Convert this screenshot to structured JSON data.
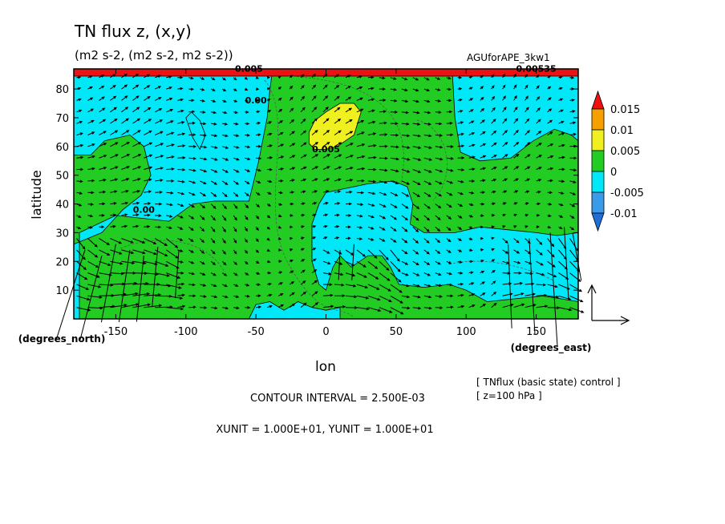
{
  "title": "TN flux z, (x,y)",
  "subtitle": "(m2 s-2, (m2 s-2, m2 s-2))",
  "run_name": "AGUforAPE_3kw1",
  "contour_interval": "CONTOUR INTERVAL = 2.500E-03",
  "units_line": "XUNIT = 1.000E+01, YUNIT = 1.000E+01",
  "legend_note_1": "[ TNflux (basic state) control ]",
  "legend_note_2": "[ z=100 hPa ]",
  "colors": {
    "lt_-0.01": "#1f6fd6",
    "-0.01_-0.005": "#3a9be8",
    "-0.005_0": "#00e8f8",
    "0_0.005": "#22cc22",
    "0.005_0.01": "#f0f020",
    "0.01_0.015": "#f5a000",
    "gt_0.015": "#ee1111"
  },
  "chart_data": {
    "type": "heatmap",
    "subtype": "filled-contour with vector overlay",
    "xlabel": "lon",
    "ylabel": "latitude",
    "xunit_label": "(degrees_east)",
    "yunit_label": "(degrees_north)",
    "xlim": [
      -180,
      180
    ],
    "ylim": [
      0,
      87
    ],
    "xticks": [
      -150,
      -100,
      -50,
      0,
      50,
      100,
      150
    ],
    "xtick_labels": [
      "-150",
      "-100",
      "-50",
      "0",
      "50",
      "100",
      "150"
    ],
    "yticks": [
      10,
      20,
      30,
      40,
      50,
      60,
      70,
      80
    ],
    "ytick_labels": [
      "10",
      "20",
      "30",
      "40",
      "50",
      "60",
      "70",
      "80"
    ],
    "colorbar": {
      "levels": [
        -0.01,
        -0.005,
        0,
        0.005,
        0.01,
        0.015
      ],
      "labels": [
        "-0.01",
        "-0.005",
        "0",
        "0.005",
        "0.01",
        "0.015"
      ]
    },
    "contour_labels": [
      {
        "text": "0.005",
        "lon": -55,
        "lat": 86
      },
      {
        "text": "0.00",
        "lon": -50,
        "lat": 75
      },
      {
        "text": "0.005",
        "lon": 0,
        "lat": 58
      },
      {
        "text": "0.00",
        "lon": -130,
        "lat": 37
      },
      {
        "text": "0.00535",
        "lon": 150,
        "lat": 86
      }
    ],
    "regions": [
      {
        "level": "0_0.005",
        "points": [
          [
            -180,
            0
          ],
          [
            180,
            0
          ],
          [
            180,
            87
          ],
          [
            -180,
            87
          ]
        ]
      },
      {
        "level": "-0.005_0",
        "points": [
          [
            -180,
            87
          ],
          [
            -180,
            57
          ],
          [
            -168,
            57
          ],
          [
            -158,
            62
          ],
          [
            -140,
            64
          ],
          [
            -130,
            60
          ],
          [
            -125,
            50
          ],
          [
            -132,
            43
          ],
          [
            -145,
            38
          ],
          [
            -160,
            30
          ],
          [
            -175,
            27
          ],
          [
            -180,
            26
          ],
          [
            -180,
            0
          ],
          [
            -176,
            0
          ],
          [
            -176,
            30
          ],
          [
            -150,
            36
          ],
          [
            -112,
            34
          ],
          [
            -95,
            40
          ],
          [
            -80,
            41
          ],
          [
            -55,
            41
          ],
          [
            -48,
            55
          ],
          [
            -42,
            70
          ],
          [
            -40,
            80
          ],
          [
            -38,
            87
          ]
        ]
      },
      {
        "level": "-0.005_0",
        "points": [
          [
            -100,
            70
          ],
          [
            -95,
            63
          ],
          [
            -90,
            59
          ],
          [
            -86,
            64
          ],
          [
            -90,
            69
          ],
          [
            -96,
            72
          ]
        ]
      },
      {
        "level": "-0.005_0",
        "points": [
          [
            90,
            87
          ],
          [
            92,
            70
          ],
          [
            96,
            58
          ],
          [
            110,
            55
          ],
          [
            132,
            56
          ],
          [
            148,
            62
          ],
          [
            163,
            66
          ],
          [
            175,
            64
          ],
          [
            180,
            62
          ],
          [
            180,
            87
          ]
        ]
      },
      {
        "level": "-0.005_0",
        "points": [
          [
            -10,
            33
          ],
          [
            -5,
            40
          ],
          [
            0,
            44
          ],
          [
            10,
            45
          ],
          [
            30,
            47
          ],
          [
            48,
            48
          ],
          [
            58,
            46
          ],
          [
            62,
            40
          ],
          [
            60,
            33
          ],
          [
            70,
            30
          ],
          [
            92,
            30
          ],
          [
            110,
            32
          ],
          [
            130,
            31
          ],
          [
            150,
            30
          ],
          [
            165,
            29
          ],
          [
            180,
            30
          ],
          [
            180,
            6
          ],
          [
            155,
            8
          ],
          [
            115,
            6
          ],
          [
            100,
            10
          ],
          [
            88,
            12
          ],
          [
            70,
            11
          ],
          [
            52,
            12
          ],
          [
            46,
            18
          ],
          [
            40,
            22
          ],
          [
            30,
            22
          ],
          [
            18,
            18
          ],
          [
            10,
            22
          ],
          [
            5,
            18
          ],
          [
            0,
            10
          ],
          [
            -5,
            12
          ],
          [
            -10,
            20
          ]
        ]
      },
      {
        "level": "-0.005_0",
        "points": [
          [
            -55,
            0
          ],
          [
            -50,
            5
          ],
          [
            -40,
            6
          ],
          [
            -30,
            3
          ],
          [
            -20,
            6
          ],
          [
            -10,
            4
          ],
          [
            0,
            3
          ],
          [
            10,
            4
          ],
          [
            10,
            0
          ]
        ]
      },
      {
        "level": "0.005_0.01",
        "points": [
          [
            -12,
            61
          ],
          [
            -8,
            59
          ],
          [
            0,
            59
          ],
          [
            8,
            60
          ],
          [
            20,
            64
          ],
          [
            25,
            72
          ],
          [
            20,
            75
          ],
          [
            10,
            75
          ],
          [
            0,
            72
          ],
          [
            -8,
            69
          ],
          [
            -12,
            65
          ]
        ]
      },
      {
        "level": "gt_0.015",
        "points": [
          [
            -180,
            87
          ],
          [
            180,
            87
          ],
          [
            180,
            84.5
          ],
          [
            -180,
            84.5
          ]
        ]
      }
    ]
  }
}
